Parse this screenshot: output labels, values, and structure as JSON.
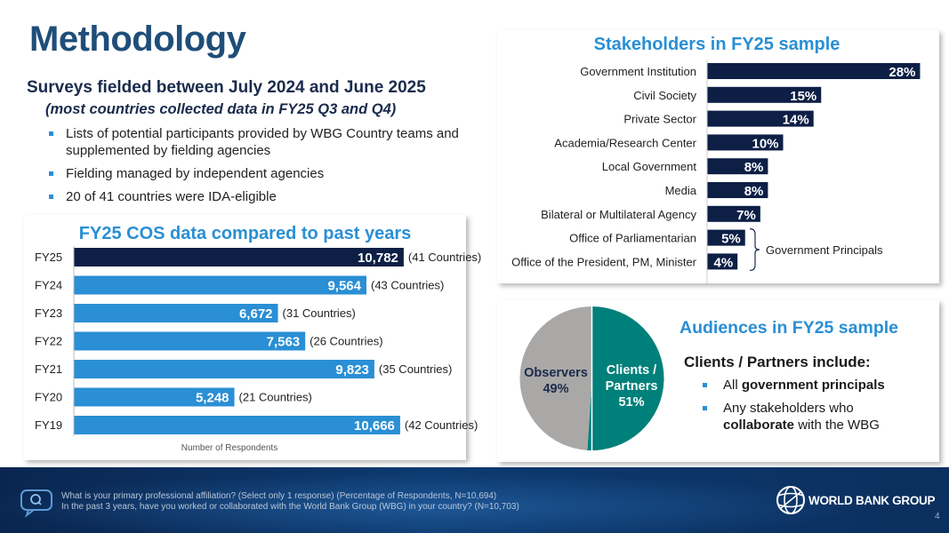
{
  "page_title": "Methodology",
  "survey": {
    "heading": "Surveys fielded between July 2024 and June 2025",
    "subheading": "(most countries collected data in FY25 Q3 and Q4)",
    "bullets": [
      "Lists of potential participants provided by WBG Country teams and supplemented by fielding agencies",
      "Fielding managed by independent agencies",
      "20 of 41 countries were IDA-eligible"
    ]
  },
  "colors": {
    "navy": "#0d1f45",
    "blue": "#2a8fd4",
    "teal": "#00807a",
    "gray": "#aaa8a7",
    "title": "#1f4e79"
  },
  "chart_data": [
    {
      "type": "bar",
      "title": "FY25 COS data compared to past years",
      "xlabel": "Number of Respondents",
      "ylabel": "",
      "categories": [
        "FY25",
        "FY24",
        "FY23",
        "FY22",
        "FY21",
        "FY20",
        "FY19"
      ],
      "values": [
        10782,
        9564,
        6672,
        7563,
        9823,
        5248,
        10666
      ],
      "value_labels": [
        "10,782",
        "9,564",
        "6,672",
        "7,563",
        "9,823",
        "5,248",
        "10,666"
      ],
      "annotations": [
        "(41 Countries)",
        "(43 Countries)",
        "(31 Countries)",
        "(26 Countries)",
        "(35 Countries)",
        "(21 Countries)",
        "(42 Countries)"
      ],
      "xlim": [
        0,
        12500
      ]
    },
    {
      "type": "bar",
      "title": "Stakeholders in FY25 sample",
      "categories": [
        "Government Institution",
        "Civil Society",
        "Private Sector",
        "Academia/Research Center",
        "Local Government",
        "Media",
        "Bilateral or Multilateral Agency",
        "Office of Parliamentarian",
        "Office of the President, PM, Minister"
      ],
      "values": [
        28,
        15,
        14,
        10,
        8,
        8,
        7,
        5,
        4
      ],
      "value_labels": [
        "28%",
        "15%",
        "14%",
        "10%",
        "8%",
        "8%",
        "7%",
        "5%",
        "4%"
      ],
      "bracket_label": "Government Principals",
      "xlim": [
        0,
        29
      ]
    },
    {
      "type": "pie",
      "title": "Audiences in FY25 sample",
      "slices": [
        {
          "name": "Clients / Partners",
          "value": 51,
          "label": "51%"
        },
        {
          "name": "Observers",
          "value": 49,
          "label": "49%"
        }
      ]
    }
  ],
  "audiences": {
    "heading": "Clients / Partners include:",
    "bullets": [
      {
        "pre": "All ",
        "bold": "government principals",
        "post": ""
      },
      {
        "pre": "Any stakeholders who ",
        "bold": "collaborate",
        "post": " with the WBG"
      }
    ]
  },
  "footer": {
    "question1": "What is your primary professional affiliation? (Select only 1 response) (Percentage of Respondents, N=10,694)",
    "question2": "In the past 3 years, have you worked or collaborated with the World Bank Group (WBG) in your country? (N=10,703)",
    "brand": "WORLD BANK GROUP",
    "page_number": "4"
  }
}
